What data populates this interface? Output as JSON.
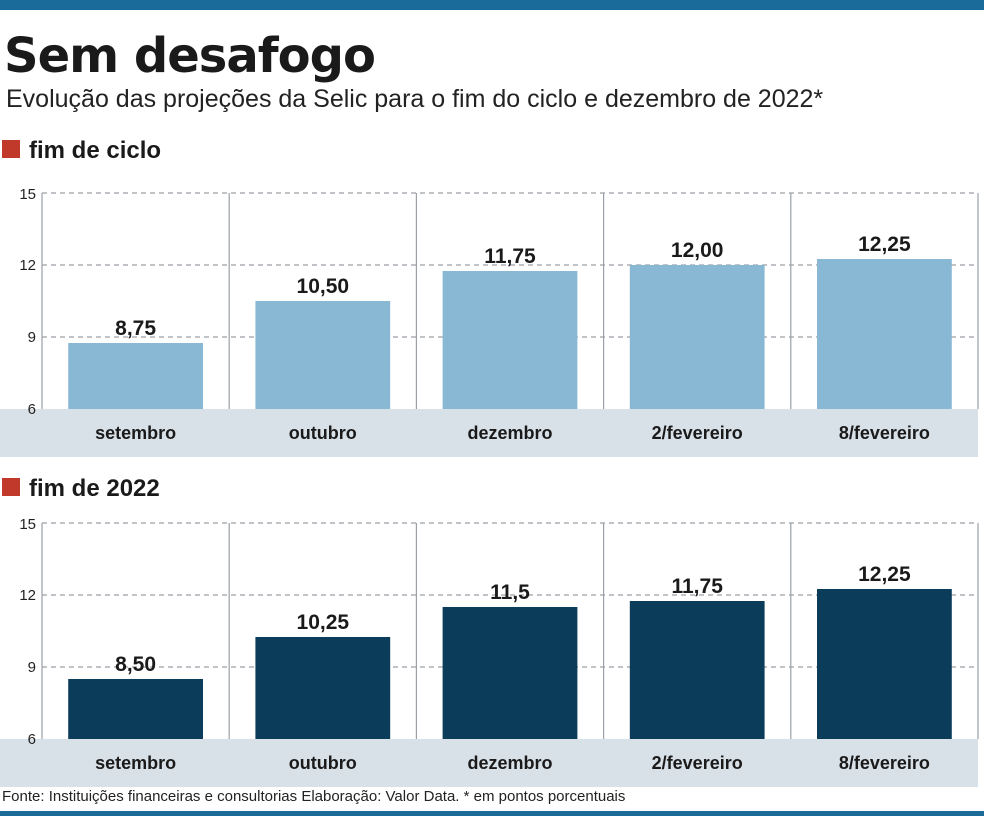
{
  "header": {
    "title": "Sem desafogo",
    "subtitle": "Evolução das projeções da Selic para o fim do ciclo e dezembro de 2022*"
  },
  "colors": {
    "brand_bar": "#1a6b9a",
    "section_marker": "#c0392b",
    "series_ciclo": "#89b8d4",
    "series_2022": "#0b3c5a",
    "axis_band": "#d9e1e8"
  },
  "chart_data": [
    {
      "type": "bar",
      "title": "fim de ciclo",
      "categories": [
        "setembro",
        "outubro",
        "dezembro",
        "2/fevereiro",
        "8/fevereiro"
      ],
      "values": [
        8.75,
        10.5,
        11.75,
        12.0,
        12.25
      ],
      "value_labels": [
        "8,75",
        "10,50",
        "11,75",
        "12,00",
        "12,25"
      ],
      "yticks": [
        6,
        9,
        12,
        15
      ],
      "ylim": [
        6,
        15
      ],
      "xlabel": "",
      "ylabel": "",
      "grid": true
    },
    {
      "type": "bar",
      "title": "fim de 2022",
      "categories": [
        "setembro",
        "outubro",
        "dezembro",
        "2/fevereiro",
        "8/fevereiro"
      ],
      "values": [
        8.5,
        10.25,
        11.5,
        11.75,
        12.25
      ],
      "value_labels": [
        "8,50",
        "10,25",
        "11,5",
        "11,75",
        "12,25"
      ],
      "yticks": [
        6,
        9,
        12,
        15
      ],
      "ylim": [
        6,
        15
      ],
      "xlabel": "",
      "ylabel": "",
      "grid": true
    }
  ],
  "footer": {
    "source": "Fonte: Instituições financeiras e consultorias Elaboração: Valor Data. * em pontos porcentuais"
  }
}
